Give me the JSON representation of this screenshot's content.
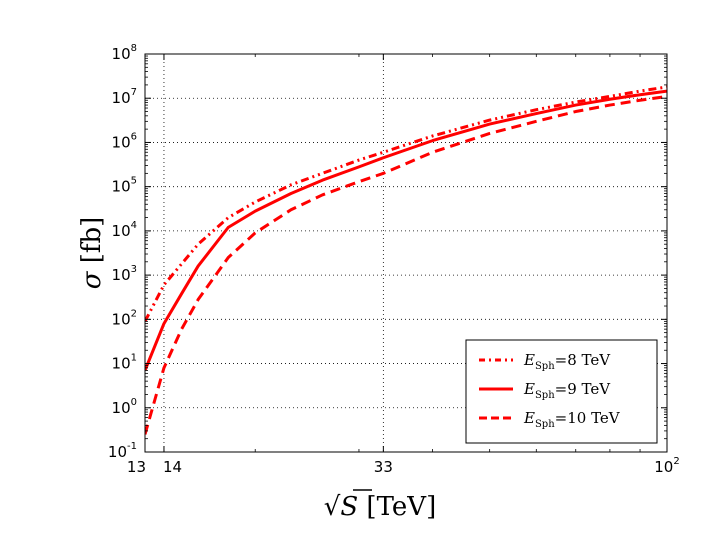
{
  "chart_data": {
    "type": "line",
    "title": "",
    "xscale": "log",
    "yscale": "log",
    "xlim": [
      13,
      100
    ],
    "ylim": [
      0.1,
      100000000
    ],
    "grid": true,
    "x_ticks": [
      {
        "value": 13,
        "label": "13"
      },
      {
        "value": 14,
        "label": "14"
      },
      {
        "value": 33,
        "label": "33"
      },
      {
        "value": 100,
        "label": "10",
        "exp": "2"
      }
    ],
    "y_ticks": [
      {
        "value": 0.1,
        "base": "10",
        "exp": "-1"
      },
      {
        "value": 1,
        "base": "10",
        "exp": "0"
      },
      {
        "value": 10,
        "base": "10",
        "exp": "1"
      },
      {
        "value": 100,
        "base": "10",
        "exp": "2"
      },
      {
        "value": 1000,
        "base": "10",
        "exp": "3"
      },
      {
        "value": 10000,
        "base": "10",
        "exp": "4"
      },
      {
        "value": 100000,
        "base": "10",
        "exp": "5"
      },
      {
        "value": 1000000,
        "base": "10",
        "exp": "6"
      },
      {
        "value": 10000000,
        "base": "10",
        "exp": "7"
      },
      {
        "value": 100000000,
        "base": "10",
        "exp": "8"
      }
    ],
    "xlabel": {
      "main": "√S",
      "unit": "[TeV]"
    },
    "ylabel": {
      "main": "σ",
      "unit": "[fb]"
    },
    "legend_position": "lower-right",
    "series": [
      {
        "name": "E_Sph = 8 TeV",
        "legend_var": "E",
        "legend_sub": "Sph",
        "legend_rest": "=8 TeV",
        "color": "#ff0000",
        "style": "dashdot",
        "x": [
          13,
          14,
          16,
          18,
          20,
          23,
          26,
          30,
          33,
          40,
          50,
          60,
          70,
          80,
          90,
          100
        ],
        "y": [
          90,
          600,
          5000,
          20000,
          45000,
          110000,
          200000,
          400000,
          600000,
          1400000,
          3200000,
          5500000,
          8200000,
          11000000,
          14500000,
          18000000
        ]
      },
      {
        "name": "E_Sph = 9 TeV",
        "legend_var": "E",
        "legend_sub": "Sph",
        "legend_rest": "=9 TeV",
        "color": "#ff0000",
        "style": "solid",
        "x": [
          13,
          14,
          15,
          16,
          18,
          20,
          23,
          26,
          30,
          33,
          40,
          50,
          60,
          70,
          80,
          90,
          100
        ],
        "y": [
          7,
          80,
          380,
          1600,
          12000,
          28000,
          70000,
          140000,
          280000,
          450000,
          1100000,
          2600000,
          4500000,
          7000000,
          9500000,
          12000000,
          14500000
        ]
      },
      {
        "name": "E_Sph = 10 TeV",
        "legend_var": "E",
        "legend_sub": "Sph",
        "legend_rest": "=10 TeV",
        "color": "#ff0000",
        "style": "dashed",
        "x": [
          13,
          14,
          15,
          16,
          18,
          20,
          23,
          26,
          30,
          33,
          40,
          50,
          60,
          70,
          80,
          90,
          100
        ],
        "y": [
          0.25,
          8,
          60,
          280,
          2500,
          9000,
          30000,
          65000,
          130000,
          200000,
          600000,
          1600000,
          3000000,
          5000000,
          7000000,
          9000000,
          11000000
        ]
      }
    ]
  }
}
